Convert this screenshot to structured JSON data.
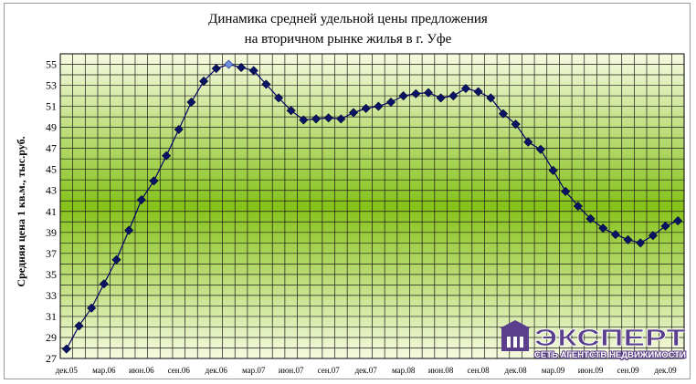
{
  "chart_data": {
    "type": "line",
    "title": "Динамика средней удельной цены предложения на вторичном рынке жилья в г. Уфе",
    "title_lines": [
      "Динамика средней удельной цены предложения",
      "на вторичном рынке жилья в г. Уфе"
    ],
    "xlabel": "",
    "ylabel": "Средняя цена 1 кв.м., тыс.руб.",
    "ylim": [
      27,
      56
    ],
    "yticks": [
      27,
      29,
      31,
      33,
      35,
      37,
      39,
      41,
      43,
      45,
      47,
      49,
      51,
      53,
      55
    ],
    "xtick_labels": [
      "дек.05",
      "мар.06",
      "июн.06",
      "сен.06",
      "дек.06",
      "мар.07",
      "июн.07",
      "сен.07",
      "дек.07",
      "мар.08",
      "июн.08",
      "сен.08",
      "дек.08",
      "мар.09",
      "июн.09",
      "сен.09",
      "дек.09"
    ],
    "grid": true,
    "legend": "none",
    "series": [
      {
        "values": [
          27.9,
          30.1,
          31.8,
          34.1,
          36.4,
          39.2,
          42.1,
          43.9,
          46.3,
          48.8,
          51.4,
          53.4,
          54.6,
          55.0,
          54.7,
          54.4,
          53.1,
          51.8,
          50.6,
          49.7,
          49.8,
          49.9,
          49.8,
          50.4,
          50.8,
          51.0,
          51.4,
          52.0,
          52.2,
          52.3,
          51.8,
          52.0,
          52.7,
          52.4,
          51.8,
          50.3,
          49.3,
          47.6,
          46.9,
          44.9,
          42.9,
          41.5,
          40.3,
          39.4,
          38.8,
          38.3,
          38.0,
          38.7,
          39.6,
          40.1
        ]
      }
    ],
    "highlighted_point_index": 13,
    "colors": {
      "line": "#000066",
      "marker": "#0a1464",
      "highlight_marker": "#6f8fe0",
      "grid": "#1a1a1a",
      "band_light": "#f6fae0",
      "band_dark": "#86c21a"
    }
  },
  "logo": {
    "name": "ЭКСПЕРТ",
    "tagline": "СЕТЬ АГЕНТСТВ НЕДВИЖИМОСТИ",
    "icon": "house-logo-icon",
    "color": "#5a3f8c"
  }
}
